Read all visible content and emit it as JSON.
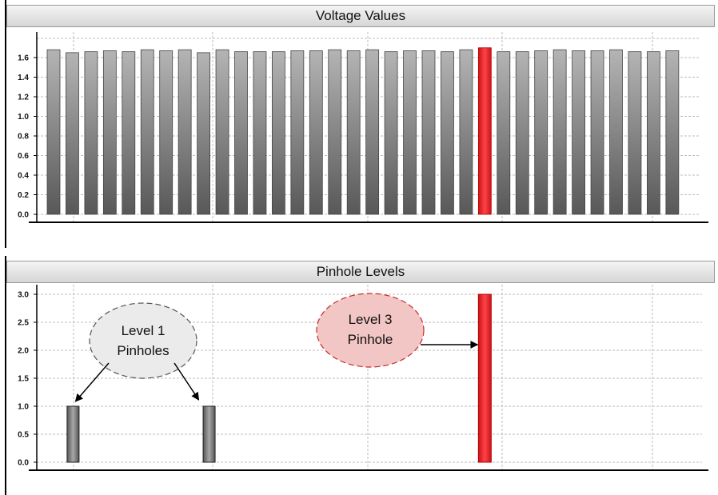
{
  "chart_data": [
    {
      "type": "bar",
      "title": "Voltage Values",
      "xlabel": "",
      "ylabel": "",
      "ylim": [
        0,
        1.8
      ],
      "yticks": [
        "0.0",
        "0.2",
        "0.4",
        "0.6",
        "0.8",
        "1.0",
        "1.2",
        "1.4",
        "1.6"
      ],
      "grid": true,
      "values": [
        1.68,
        1.65,
        1.66,
        1.67,
        1.66,
        1.68,
        1.67,
        1.68,
        1.65,
        1.68,
        1.66,
        1.66,
        1.66,
        1.67,
        1.67,
        1.68,
        1.67,
        1.68,
        1.66,
        1.67,
        1.67,
        1.66,
        1.68,
        1.7,
        1.66,
        1.66,
        1.67,
        1.68,
        1.67,
        1.67,
        1.68,
        1.66,
        1.66,
        1.67
      ],
      "highlight_index": 23,
      "colors": {
        "normal": "#7d7d7d",
        "highlight": "#e8262b"
      }
    },
    {
      "type": "bar",
      "title": "Pinhole Levels",
      "xlabel": "",
      "ylabel": "",
      "ylim": [
        0,
        3.0
      ],
      "yticks": [
        "0.0",
        "0.5",
        "1.0",
        "1.5",
        "2.0",
        "2.5",
        "3.0"
      ],
      "grid": true,
      "bars": [
        {
          "position": 2,
          "value": 1.0,
          "color": "#7d7d7d"
        },
        {
          "position": 9,
          "value": 1.0,
          "color": "#7d7d7d"
        },
        {
          "position": 23,
          "value": 3.0,
          "color": "#e8262b"
        }
      ],
      "annotations": [
        {
          "lines": [
            "Level 1",
            "Pinholes"
          ],
          "targets": [
            2,
            9
          ],
          "style": "gray"
        },
        {
          "lines": [
            "Level 3",
            "Pinhole"
          ],
          "targets": [
            23
          ],
          "style": "red"
        }
      ]
    }
  ]
}
